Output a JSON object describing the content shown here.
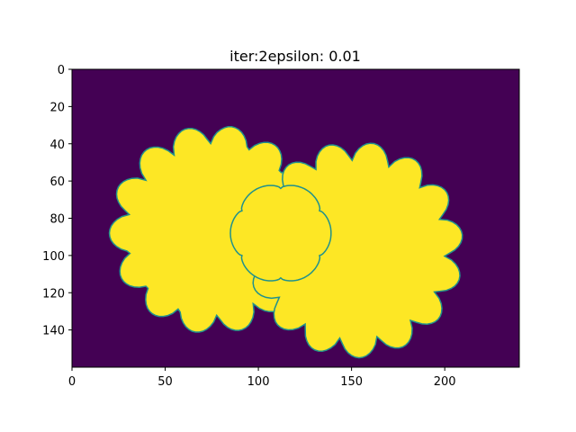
{
  "chart_data": {
    "type": "heatmap",
    "title": "iter:2epsilon: 0.01",
    "colormap": "viridis",
    "background_color": "#440154",
    "foreground_color": "#fde725",
    "edge_color": "#21918c",
    "image_width": 240,
    "image_height": 160,
    "x_ticks": [
      0,
      50,
      100,
      150,
      200
    ],
    "y_ticks": [
      0,
      20,
      40,
      60,
      80,
      100,
      120,
      140
    ],
    "xlim": [
      0,
      240
    ],
    "ylim": [
      160,
      0
    ],
    "grid": false,
    "blobs": [
      {
        "name": "left-flower",
        "center": [
          76,
          86
        ],
        "base_radius": 44,
        "petal_count": 14,
        "petal_amplitude": 12,
        "phase": 0.3
      },
      {
        "name": "right-flower",
        "center": [
          152,
          97
        ],
        "base_radius": 46,
        "petal_count": 15,
        "petal_amplitude": 12,
        "phase": 1.1
      },
      {
        "name": "bridge",
        "center": [
          112,
          88
        ],
        "base_radius": 24,
        "petal_count": 6,
        "petal_amplitude": 3,
        "phase": 0
      }
    ]
  }
}
